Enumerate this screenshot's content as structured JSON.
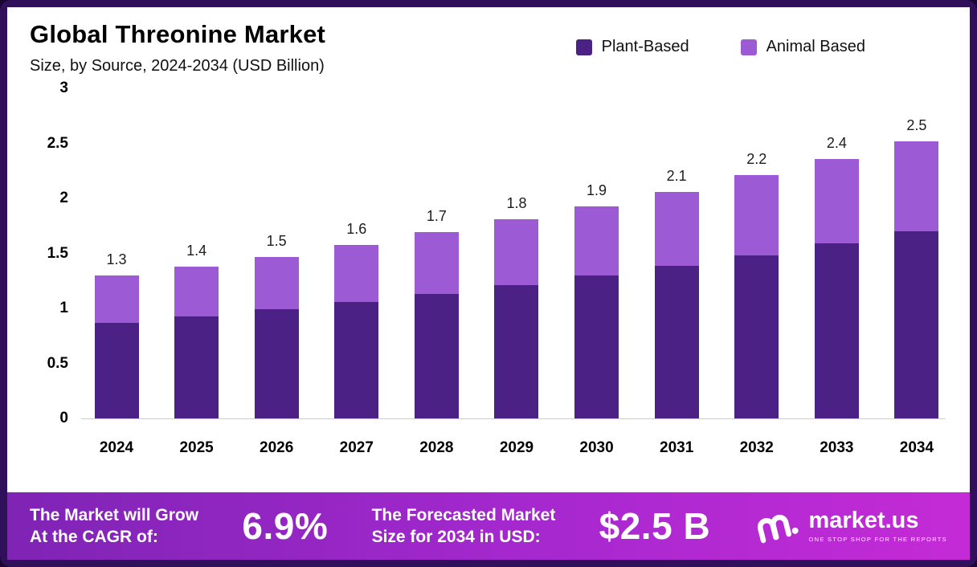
{
  "header": {
    "title": "Global Threonine Market",
    "subtitle": "Size, by Source, 2024-2034 (USD Billion)"
  },
  "legend": [
    {
      "label": "Plant-Based",
      "color": "#4b2185"
    },
    {
      "label": "Animal Based",
      "color": "#9c5bd4"
    }
  ],
  "chart_data": {
    "type": "bar",
    "stacked": true,
    "title": "Global Threonine Market Size, by Source, 2024-2034 (USD Billion)",
    "categories": [
      "2024",
      "2025",
      "2026",
      "2027",
      "2028",
      "2029",
      "2030",
      "2031",
      "2032",
      "2033",
      "2034"
    ],
    "series": [
      {
        "name": "Plant-Based",
        "color": "#4b2185",
        "values": [
          0.87,
          0.93,
          0.99,
          1.06,
          1.13,
          1.21,
          1.3,
          1.39,
          1.48,
          1.59,
          1.7
        ]
      },
      {
        "name": "Animal Based",
        "color": "#9c5bd4",
        "values": [
          0.43,
          0.45,
          0.48,
          0.52,
          0.56,
          0.6,
          0.63,
          0.67,
          0.73,
          0.77,
          0.82
        ]
      }
    ],
    "totals_labels": [
      "1.3",
      "1.4",
      "1.5",
      "1.6",
      "1.7",
      "1.8",
      "1.9",
      "2.1",
      "2.2",
      "2.4",
      "2.5"
    ],
    "xlabel": "",
    "ylabel": "",
    "ylim": [
      0,
      3
    ],
    "yticks": [
      {
        "value": 0,
        "label": "0"
      },
      {
        "value": 0.5,
        "label": "0.5"
      },
      {
        "value": 1,
        "label": "1"
      },
      {
        "value": 1.5,
        "label": "1.5"
      },
      {
        "value": 2,
        "label": "2"
      },
      {
        "value": 2.5,
        "label": "2.5"
      },
      {
        "value": 3,
        "label": "3"
      }
    ],
    "legend_position": "top",
    "grid": false
  },
  "footer": {
    "cagr_label": "The Market will Grow\nAt the CAGR of:",
    "cagr_value": "6.9%",
    "forecast_label": "The Forecasted Market\nSize for 2034 in USD:",
    "forecast_value": "$2.5 B",
    "brand": "market.us",
    "brand_tagline": "ONE STOP SHOP FOR THE REPORTS"
  }
}
